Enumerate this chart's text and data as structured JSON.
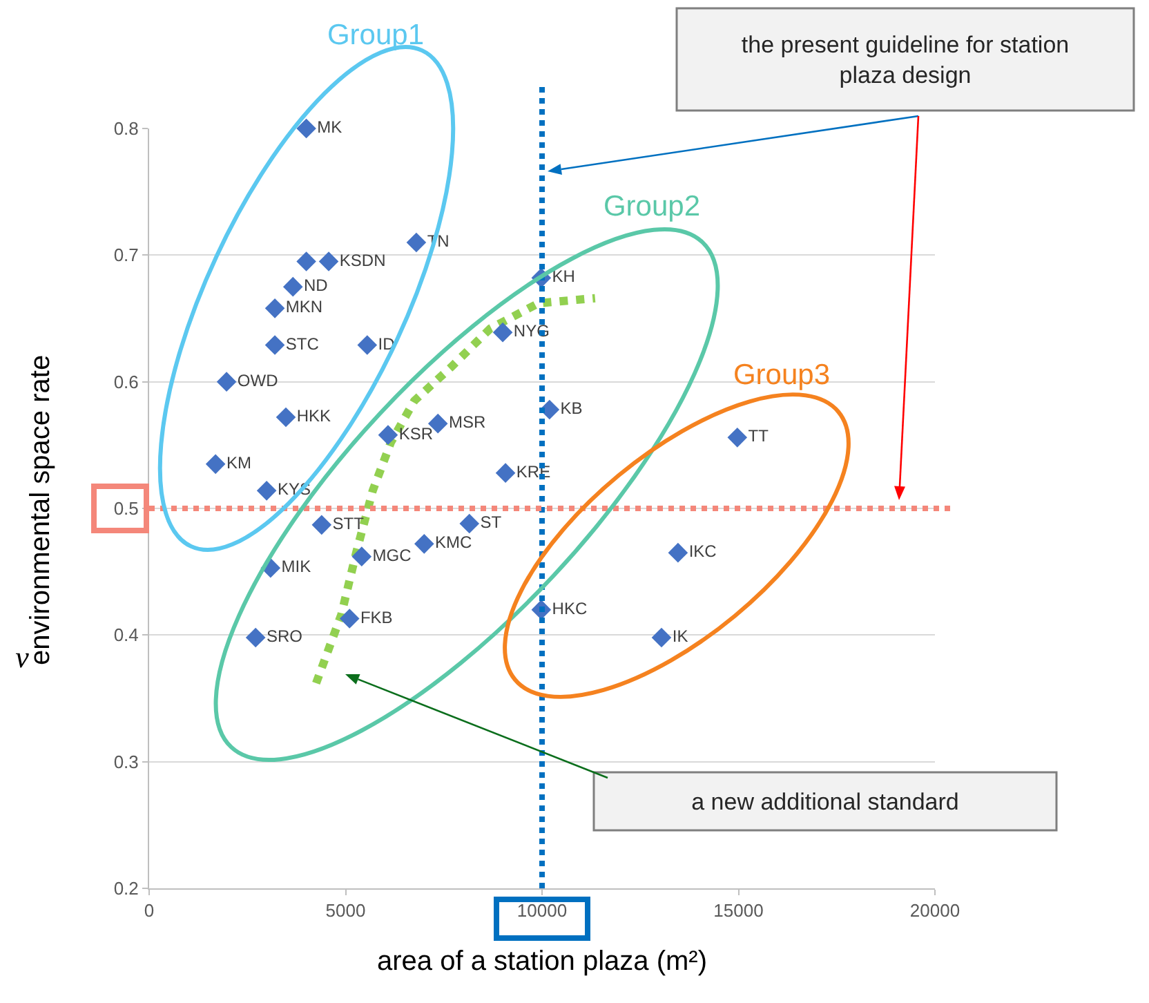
{
  "chart_data": {
    "type": "scatter",
    "xlabel": "area of a station plaza (m²)",
    "ylabel": "environmental space rate",
    "xlim": [
      0,
      20000
    ],
    "xticks": [
      0,
      5000,
      10000,
      15000,
      20000
    ],
    "ylim": [
      0.2,
      0.8
    ],
    "yticks": [
      0.2,
      0.3,
      0.4,
      0.5,
      0.6,
      0.7,
      0.8
    ],
    "grid": "y",
    "legend": false,
    "marker": "diamond",
    "series": [
      {
        "name": "MK",
        "color": "#4472c4",
        "x": [
          4000
        ],
        "values": [
          0.8
        ]
      },
      {
        "name": "TN",
        "color": "#4472c4",
        "x": [
          6800
        ],
        "values": [
          0.71
        ]
      },
      {
        "name": "KSDN",
        "color": "#4472c4",
        "x": [
          4000,
          4570
        ],
        "values": [
          0.695,
          0.695
        ]
      },
      {
        "name": "ND",
        "color": "#4472c4",
        "x": [
          3660
        ],
        "values": [
          0.675
        ]
      },
      {
        "name": "MKN",
        "color": "#4472c4",
        "x": [
          3200
        ],
        "values": [
          0.658
        ]
      },
      {
        "name": "STC",
        "color": "#4472c4",
        "x": [
          3200
        ],
        "values": [
          0.629
        ]
      },
      {
        "name": "ID",
        "color": "#4472c4",
        "x": [
          5550
        ],
        "values": [
          0.629
        ]
      },
      {
        "name": "OWD",
        "color": "#4472c4",
        "x": [
          1970
        ],
        "values": [
          0.6
        ]
      },
      {
        "name": "HKK",
        "color": "#4472c4",
        "x": [
          3480
        ],
        "values": [
          0.572
        ]
      },
      {
        "name": "KM",
        "color": "#4472c4",
        "x": [
          1690
        ],
        "values": [
          0.535
        ]
      },
      {
        "name": "KYS",
        "color": "#4472c4",
        "x": [
          2990
        ],
        "values": [
          0.514
        ]
      },
      {
        "name": "STT",
        "color": "#4472c4",
        "x": [
          4390
        ],
        "values": [
          0.487
        ]
      },
      {
        "name": "MIK",
        "color": "#4472c4",
        "x": [
          3090
        ],
        "values": [
          0.453
        ]
      },
      {
        "name": "SRO",
        "color": "#4472c4",
        "x": [
          2710
        ],
        "values": [
          0.398
        ]
      },
      {
        "name": "MGC",
        "color": "#4472c4",
        "x": [
          5410
        ],
        "values": [
          0.462
        ]
      },
      {
        "name": "FKB",
        "color": "#4472c4",
        "x": [
          5100
        ],
        "values": [
          0.413
        ]
      },
      {
        "name": "KMC",
        "color": "#4472c4",
        "x": [
          7000
        ],
        "values": [
          0.472
        ]
      },
      {
        "name": "ST",
        "color": "#4472c4",
        "x": [
          8150
        ],
        "values": [
          0.488
        ]
      },
      {
        "name": "KSR",
        "color": "#4472c4",
        "x": [
          6080
        ],
        "values": [
          0.558
        ]
      },
      {
        "name": "MSR",
        "color": "#4472c4",
        "x": [
          7350
        ],
        "values": [
          0.567
        ]
      },
      {
        "name": "KRE",
        "color": "#4472c4",
        "x": [
          9070
        ],
        "values": [
          0.528
        ]
      },
      {
        "name": "KH",
        "color": "#4472c4",
        "x": [
          9980
        ],
        "values": [
          0.682
        ]
      },
      {
        "name": "NYG",
        "color": "#4472c4",
        "x": [
          9000
        ],
        "values": [
          0.639
        ]
      },
      {
        "name": "KB",
        "color": "#4472c4",
        "x": [
          10190
        ],
        "values": [
          0.578
        ]
      },
      {
        "name": "TT",
        "color": "#4472c4",
        "x": [
          14970
        ],
        "values": [
          0.556
        ]
      },
      {
        "name": "IKC",
        "color": "#4472c4",
        "x": [
          13460
        ],
        "values": [
          0.465
        ]
      },
      {
        "name": "HKC",
        "color": "#4472c4",
        "x": [
          9980
        ],
        "values": [
          0.42
        ]
      },
      {
        "name": "IK",
        "color": "#4472c4",
        "x": [
          13040
        ],
        "values": [
          0.398
        ]
      },
      {
        "type": "line",
        "color": "#92d050",
        "line_style": "dotted",
        "marker": "none",
        "x": [
          4250,
          4890,
          5270,
          5690,
          6150,
          6750,
          7700,
          8680,
          9910,
          11350
        ],
        "values": [
          0.362,
          0.416,
          0.465,
          0.514,
          0.552,
          0.585,
          0.612,
          0.642,
          0.662,
          0.666
        ]
      }
    ],
    "ref_lines": [
      {
        "axis": "x",
        "value": 10000,
        "color": "#0070c0",
        "line_style": "dotted"
      },
      {
        "axis": "y",
        "value": 0.5,
        "color": "#f4877a",
        "line_style": "dotted"
      }
    ],
    "annotations": [
      "Group1",
      "Group2",
      "Group3",
      "the present guideline for station plaza design",
      "a new additional standard",
      "v"
    ]
  }
}
